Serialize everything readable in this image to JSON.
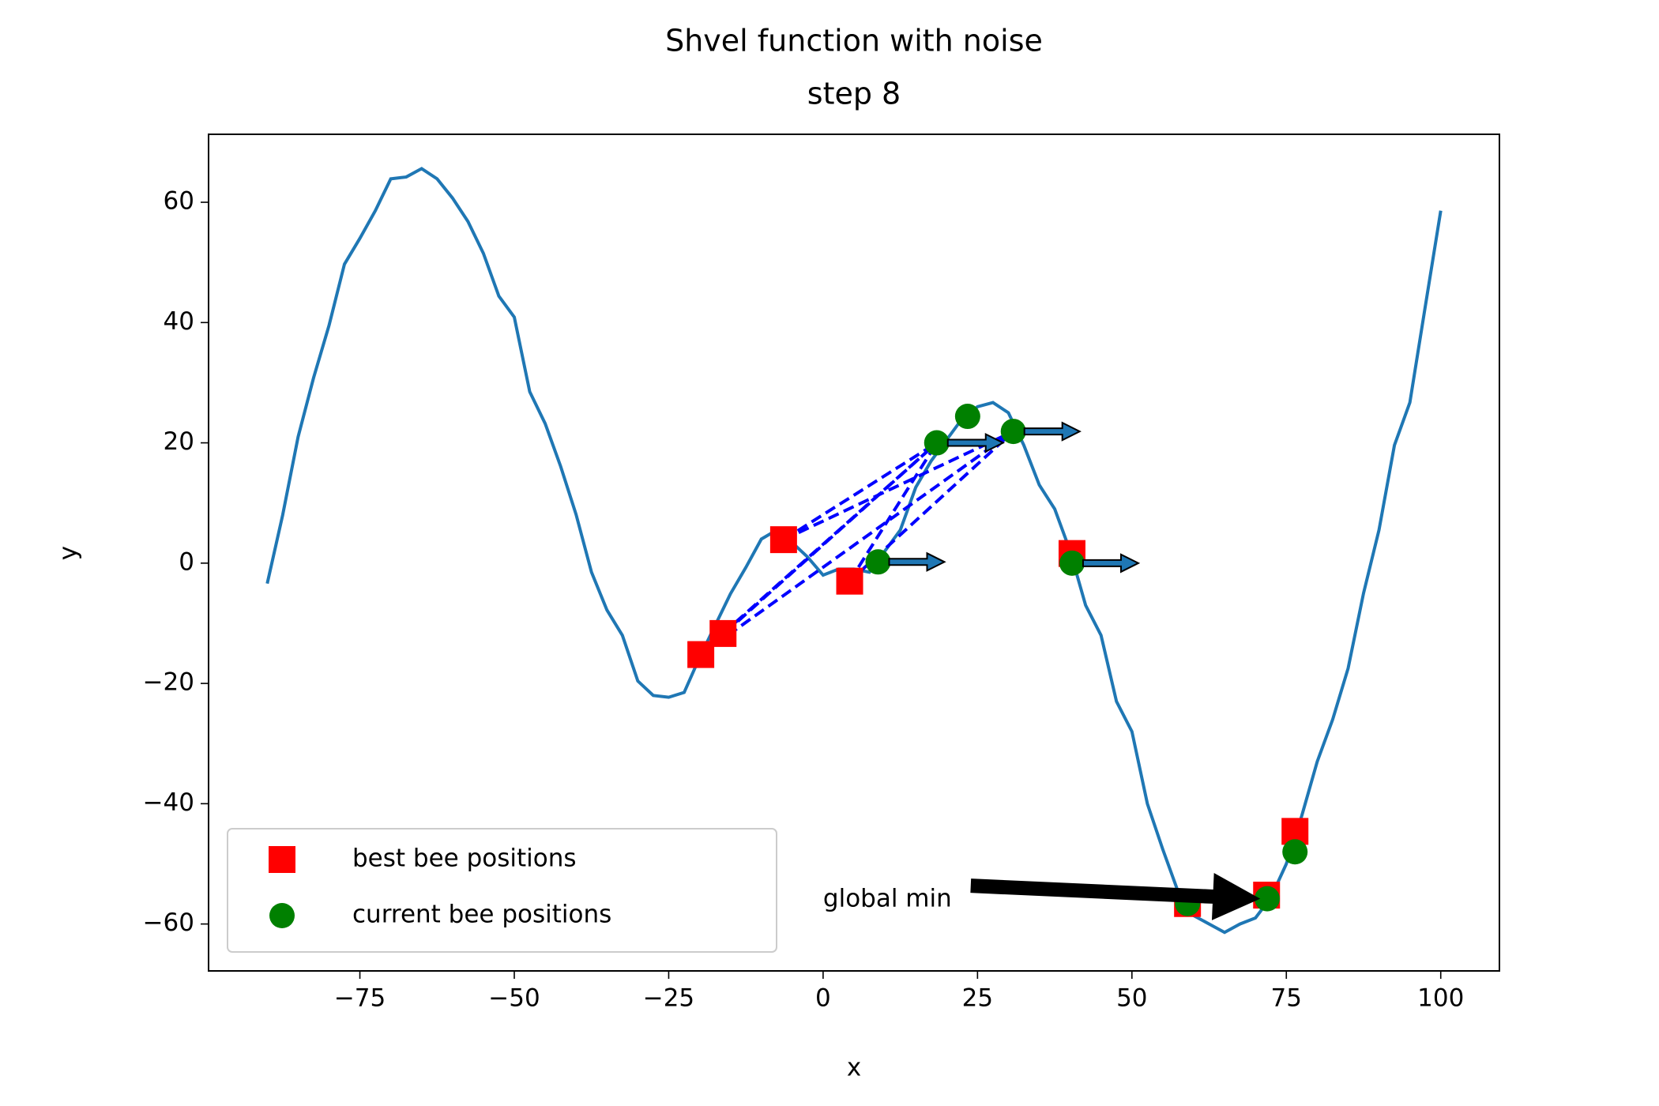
{
  "chart_data": {
    "type": "line",
    "title": "Shvel function with noise",
    "subtitle": "step 8",
    "subtitle_color": "#ff0000",
    "x_label": "x",
    "y_label": "y",
    "xlim": [
      -99.5,
      109.5
    ],
    "ylim": [
      -67.8,
      71.3
    ],
    "xticks": [
      {
        "value": -75,
        "label": "−75"
      },
      {
        "value": -50,
        "label": "−50"
      },
      {
        "value": -25,
        "label": "−25"
      },
      0,
      25,
      50,
      75,
      100
    ],
    "yticks": [
      {
        "value": -60,
        "label": "−60"
      },
      {
        "value": -40,
        "label": "−40"
      },
      {
        "value": -20,
        "label": "−20"
      },
      0,
      20,
      40,
      60
    ],
    "grid": false,
    "legend": "lower left",
    "line": {
      "color": "#1f77b4",
      "x": [
        -90,
        -87.5,
        -85,
        -82.5,
        -80,
        -77.5,
        -75,
        -72.5,
        -70,
        -67.5,
        -65,
        -62.5,
        -60,
        -57.5,
        -55,
        -52.5,
        -50,
        -47.5,
        -45,
        -42.5,
        -40,
        -37.5,
        -35,
        -32.5,
        -30,
        -27.5,
        -25,
        -22.5,
        -20,
        -17.5,
        -15,
        -12.5,
        -10,
        -7.5,
        -5,
        -2.5,
        0,
        2.5,
        5,
        7.5,
        10,
        12.5,
        15,
        17.5,
        20,
        22.5,
        25,
        27.5,
        30,
        32.5,
        35,
        37.5,
        40,
        42.5,
        45,
        47.5,
        50,
        52.5,
        55,
        57.5,
        60,
        62.5,
        65,
        67.5,
        70,
        72.5,
        75,
        77.5,
        80,
        82.5,
        85,
        87.5,
        90,
        92.5,
        95,
        97.5,
        100
      ],
      "y": [
        -3.4,
        8,
        21,
        30.8,
        39.5,
        49.7,
        54,
        58.6,
        63.9,
        64.2,
        65.6,
        63.9,
        60.7,
        56.8,
        51.5,
        44.4,
        40.9,
        28.5,
        23.2,
        16.1,
        8.1,
        -1.5,
        -7.8,
        -12,
        -19.6,
        -22,
        -22.3,
        -21.5,
        -15.7,
        -10.4,
        -5.1,
        -0.7,
        4,
        5.5,
        3.4,
        1,
        -2,
        -1,
        -1,
        -1.5,
        2,
        5.5,
        12.6,
        17,
        20.5,
        24,
        26,
        26.7,
        25,
        19.6,
        13,
        9,
        2,
        -7,
        -12,
        -23,
        -28,
        -40,
        -47.6,
        -54.7,
        -58.6,
        -60,
        -61.4,
        -60,
        -59,
        -55.6,
        -50,
        -42,
        -33,
        -26,
        -17.5,
        -5,
        5.5,
        19.6,
        26.7,
        42.7,
        58.6
      ]
    },
    "series": [
      {
        "name": "best bee positions",
        "color": "#ff0000",
        "marker": "square",
        "x": [
          -19.8,
          -16.2,
          -6.4,
          4.3,
          40.3,
          59,
          71.8,
          76.4
        ],
        "values": [
          -15.2,
          -11.7,
          3.9,
          -3,
          1.6,
          -56.6,
          -55.2,
          -44.6
        ]
      },
      {
        "name": "current bee positions",
        "color": "#008000",
        "marker": "circle",
        "x": [
          8.9,
          18.4,
          23.4,
          30.8,
          40.3,
          59,
          71.9,
          76.4
        ],
        "values": [
          0.2,
          20,
          24.4,
          21.9,
          0,
          -56.6,
          -55.8,
          -48
        ]
      }
    ],
    "annotation": {
      "text": "global min",
      "xy": [
        71.8,
        -55.8
      ],
      "xytext": [
        0,
        -56
      ]
    }
  }
}
